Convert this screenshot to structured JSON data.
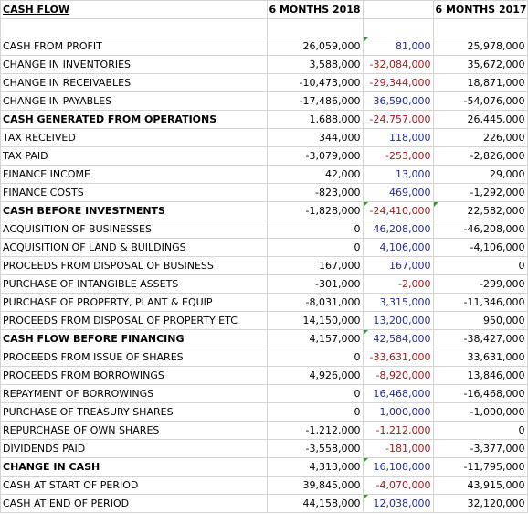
{
  "header": {
    "title": "CASH FLOW",
    "col_2018": "6 MONTHS 2018",
    "col_diff": "",
    "col_2017": "6 MONTHS 2017"
  },
  "colors": {
    "positive_diff": "#1f2a9c",
    "negative_diff": "#a8171b",
    "comment_marker": "#2f9e2f"
  },
  "rows": [
    {
      "label": "CASH FROM PROFIT",
      "v2018": "26,059,000",
      "diff": "81,000",
      "v2017": "25,978,000",
      "bold": false
    },
    {
      "label": "CHANGE IN INVENTORIES",
      "v2018": "3,588,000",
      "diff": "-32,084,000",
      "v2017": "35,672,000",
      "bold": false
    },
    {
      "label": "CHANGE IN RECEIVABLES",
      "v2018": "-10,473,000",
      "diff": "-29,344,000",
      "v2017": "18,871,000",
      "bold": false
    },
    {
      "label": "CHANGE IN PAYABLES",
      "v2018": "-17,486,000",
      "diff": "36,590,000",
      "v2017": "-54,076,000",
      "bold": false
    },
    {
      "label": "CASH GENERATED FROM OPERATIONS",
      "v2018": "1,688,000",
      "diff": "-24,757,000",
      "v2017": "26,445,000",
      "bold": true
    },
    {
      "label": "TAX RECEIVED",
      "v2018": "344,000",
      "diff": "118,000",
      "v2017": "226,000",
      "bold": false
    },
    {
      "label": "TAX PAID",
      "v2018": "-3,079,000",
      "diff": "-253,000",
      "v2017": "-2,826,000",
      "bold": false
    },
    {
      "label": "FINANCE INCOME",
      "v2018": "42,000",
      "diff": "13,000",
      "v2017": "29,000",
      "bold": false
    },
    {
      "label": "FINANCE COSTS",
      "v2018": "-823,000",
      "diff": "469,000",
      "v2017": "-1,292,000",
      "bold": false
    },
    {
      "label": "CASH BEFORE INVESTMENTS",
      "v2018": "-1,828,000",
      "diff": "-24,410,000",
      "v2017": "22,582,000",
      "bold": true
    },
    {
      "label": "ACQUISITION OF BUSINESSES",
      "v2018": "0",
      "diff": "46,208,000",
      "v2017": "-46,208,000",
      "bold": false
    },
    {
      "label": "ACQUISITION OF LAND & BUILDINGS",
      "v2018": "0",
      "diff": "4,106,000",
      "v2017": "-4,106,000",
      "bold": false
    },
    {
      "label": "PROCEEDS FROM DISPOSAL OF BUSINESS",
      "v2018": "167,000",
      "diff": "167,000",
      "v2017": "0",
      "bold": false
    },
    {
      "label": "PURCHASE OF INTANGIBLE ASSETS",
      "v2018": "-301,000",
      "diff": "-2,000",
      "v2017": "-299,000",
      "bold": false
    },
    {
      "label": "PURCHASE OF PROPERTY, PLANT & EQUIP",
      "v2018": "-8,031,000",
      "diff": "3,315,000",
      "v2017": "-11,346,000",
      "bold": false
    },
    {
      "label": "PROCEEDS FROM DISPOSAL OF PROPERTY ETC",
      "v2018": "14,150,000",
      "diff": "13,200,000",
      "v2017": "950,000",
      "bold": false
    },
    {
      "label": "CASH FLOW BEFORE FINANCING",
      "v2018": "4,157,000",
      "diff": "42,584,000",
      "v2017": "-38,427,000",
      "bold": true
    },
    {
      "label": "PROCEEDS FROM ISSUE OF SHARES",
      "v2018": "0",
      "diff": "-33,631,000",
      "v2017": "33,631,000",
      "bold": false
    },
    {
      "label": "PROCEEDS FROM BORROWINGS",
      "v2018": "4,926,000",
      "diff": "-8,920,000",
      "v2017": "13,846,000",
      "bold": false
    },
    {
      "label": "REPAYMENT OF BORROWINGS",
      "v2018": "0",
      "diff": "16,468,000",
      "v2017": "-16,468,000",
      "bold": false
    },
    {
      "label": "PURCHASE OF TREASURY SHARES",
      "v2018": "0",
      "diff": "1,000,000",
      "v2017": "-1,000,000",
      "bold": false
    },
    {
      "label": "REPURCHASE OF OWN SHARES",
      "v2018": "-1,212,000",
      "diff": "-1,212,000",
      "v2017": "0",
      "bold": false
    },
    {
      "label": "DIVIDENDS PAID",
      "v2018": "-3,558,000",
      "diff": "-181,000",
      "v2017": "-3,377,000",
      "bold": false
    },
    {
      "label": "CHANGE IN CASH",
      "v2018": "4,313,000",
      "diff": "16,108,000",
      "v2017": "-11,795,000",
      "bold": true
    },
    {
      "label": "CASH AT START OF PERIOD",
      "v2018": "39,845,000",
      "diff": "-4,070,000",
      "v2017": "43,915,000",
      "bold": false
    },
    {
      "label": "CASH AT END OF PERIOD",
      "v2018": "44,158,000",
      "diff": "12,038,000",
      "v2017": "32,120,000",
      "bold": false
    }
  ]
}
